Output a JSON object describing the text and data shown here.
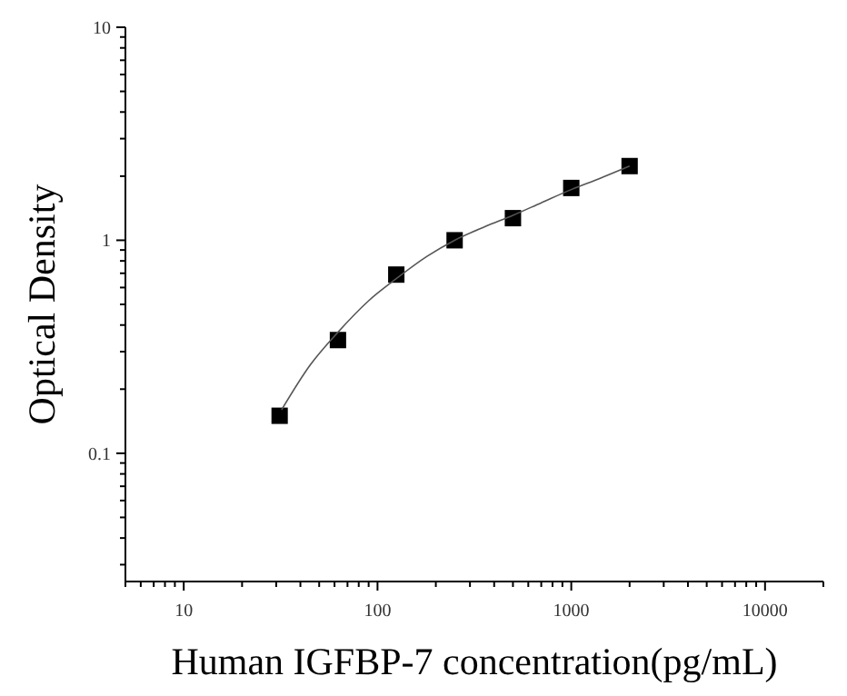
{
  "chart_data": {
    "type": "scatter",
    "xlabel": "Human IGFBP-7 concentration(pg/mL)",
    "ylabel": "Optical Density",
    "log": "xy",
    "marker": "square",
    "grid": false,
    "xlim": [
      5,
      20000
    ],
    "ylim": [
      0.025,
      10
    ],
    "xticks": [
      {
        "value": 5,
        "label": null
      },
      {
        "value": 6,
        "label": null
      },
      {
        "value": 7,
        "label": null
      },
      {
        "value": 8,
        "label": null
      },
      {
        "value": 9,
        "label": null
      },
      10,
      {
        "value": 20,
        "label": null
      },
      {
        "value": 30,
        "label": null
      },
      {
        "value": 40,
        "label": null
      },
      {
        "value": 50,
        "label": null
      },
      {
        "value": 60,
        "label": null
      },
      {
        "value": 70,
        "label": null
      },
      {
        "value": 80,
        "label": null
      },
      {
        "value": 90,
        "label": null
      },
      100,
      {
        "value": 200,
        "label": null
      },
      {
        "value": 300,
        "label": null
      },
      {
        "value": 400,
        "label": null
      },
      {
        "value": 500,
        "label": null
      },
      {
        "value": 600,
        "label": null
      },
      {
        "value": 700,
        "label": null
      },
      {
        "value": 800,
        "label": null
      },
      {
        "value": 900,
        "label": null
      },
      1000,
      {
        "value": 2000,
        "label": null
      },
      {
        "value": 3000,
        "label": null
      },
      {
        "value": 4000,
        "label": null
      },
      {
        "value": 5000,
        "label": null
      },
      {
        "value": 6000,
        "label": null
      },
      {
        "value": 7000,
        "label": null
      },
      {
        "value": 8000,
        "label": null
      },
      {
        "value": 9000,
        "label": null
      },
      10000,
      {
        "value": 20000,
        "label": null
      }
    ],
    "yticks": [
      {
        "value": 0.03,
        "label": null
      },
      {
        "value": 0.04,
        "label": null
      },
      {
        "value": 0.05,
        "label": null
      },
      {
        "value": 0.06,
        "label": null
      },
      {
        "value": 0.07,
        "label": null
      },
      {
        "value": 0.08,
        "label": null
      },
      {
        "value": 0.09,
        "label": null
      },
      {
        "value": 0.1,
        "label": "0.1"
      },
      {
        "value": 0.2,
        "label": null
      },
      {
        "value": 0.3,
        "label": null
      },
      {
        "value": 0.4,
        "label": null
      },
      {
        "value": 0.5,
        "label": null
      },
      {
        "value": 0.6,
        "label": null
      },
      {
        "value": 0.7,
        "label": null
      },
      {
        "value": 0.8,
        "label": null
      },
      {
        "value": 0.9,
        "label": null
      },
      1,
      {
        "value": 2,
        "label": null
      },
      {
        "value": 3,
        "label": null
      },
      {
        "value": 4,
        "label": null
      },
      {
        "value": 5,
        "label": null
      },
      {
        "value": 6,
        "label": null
      },
      {
        "value": 7,
        "label": null
      },
      {
        "value": 8,
        "label": null
      },
      {
        "value": 9,
        "label": null
      },
      10
    ],
    "series": [
      {
        "color": "#000000",
        "x": [
          31.25,
          62.5,
          125,
          250,
          500,
          1000,
          2000
        ],
        "values": [
          0.15,
          0.34,
          0.69,
          1.0,
          1.27,
          1.76,
          2.23
        ]
      },
      {
        "type": "line",
        "color": "#555555",
        "marker": "none",
        "x": [
          32,
          45,
          62.5,
          90,
          125,
          180,
          250,
          360,
          500,
          700,
          1000,
          1400,
          2000
        ],
        "values": [
          0.16,
          0.26,
          0.37,
          0.52,
          0.66,
          0.84,
          1.0,
          1.16,
          1.31,
          1.5,
          1.73,
          1.95,
          2.23
        ]
      }
    ]
  }
}
